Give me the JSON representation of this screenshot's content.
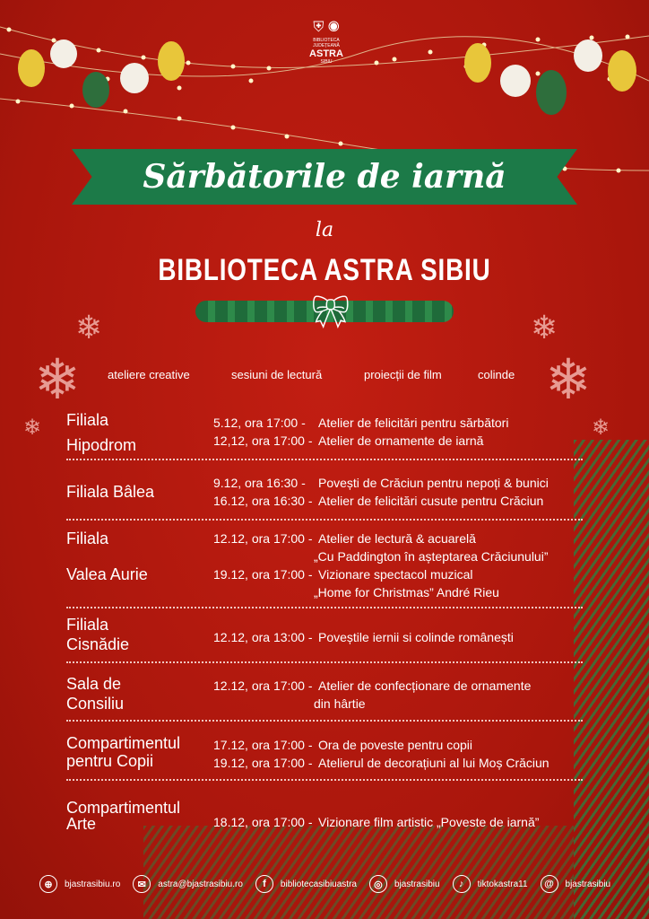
{
  "logo": {
    "line1": "Consiliul Județean Sibiu",
    "line2": "BIBLIOTECA JUDEȚEANĂ",
    "name": "ASTRA",
    "city": "SIBIU"
  },
  "title": "Sărbătorile de iarnă",
  "connector": "la",
  "subtitle": "BIBLIOTECA ASTRA SIBIU",
  "categories": [
    "ateliere creative",
    "sesiuni de lectură",
    "proiecții de film",
    "colinde"
  ],
  "schedule": [
    {
      "place": [
        "Filiala",
        "Hipodrom"
      ],
      "events": [
        {
          "when": "5.12, ora 17:00 -",
          "what": [
            "Atelier de felicitări pentru sărbători"
          ]
        },
        {
          "when": "12,12, ora 17:00 -",
          "what": [
            "Atelier de ornamente de iarnă"
          ]
        }
      ]
    },
    {
      "place": [
        "Filiala Bâlea"
      ],
      "events": [
        {
          "when": "9.12, ora 16:30 -",
          "what": [
            "Povești de Crăciun pentru nepoți & bunici"
          ]
        },
        {
          "when": "16.12, ora 16:30 -",
          "what": [
            "Atelier de felicitări cusute pentru Crăciun"
          ]
        }
      ]
    },
    {
      "place": [
        "Filiala",
        "Valea Aurie"
      ],
      "events": [
        {
          "when": "12.12, ora 17:00 -",
          "what": [
            "Atelier de lectură & acuarelă",
            "„Cu Paddington în așteptarea Crăciunului”"
          ]
        },
        {
          "when": "19.12, ora 17:00 -",
          "what": [
            "Vizionare spectacol muzical",
            "„Home for Christmas” André Rieu"
          ]
        }
      ]
    },
    {
      "place": [
        "Filiala",
        "Cisnădie"
      ],
      "events": [
        {
          "when": "12.12, ora 13:00 -",
          "what": [
            "Poveștile iernii si colinde românești"
          ]
        }
      ]
    },
    {
      "place": [
        "Sala de",
        "Consiliu"
      ],
      "events": [
        {
          "when": "12.12, ora 17:00 -",
          "what": [
            "Atelier de confecționare de ornamente",
            "din hârtie"
          ]
        }
      ]
    },
    {
      "place": [
        "Compartimentul",
        "pentru Copii"
      ],
      "events": [
        {
          "when": "17.12, ora 17:00 -",
          "what": [
            "Ora de poveste pentru copii"
          ]
        },
        {
          "when": "19.12, ora 17:00 -",
          "what": [
            "Atelierul de decorațiuni al lui Moș Crăciun"
          ]
        }
      ]
    },
    {
      "place": [
        "Compartimentul",
        "Arte"
      ],
      "events": [
        {
          "when": "18.12, ora 17:00 -",
          "what": [
            "Vizionare film artistic „Poveste de iarnă”"
          ]
        }
      ]
    }
  ],
  "footer": [
    {
      "icon": "globe-icon",
      "glyph": "⊕",
      "label": "bjastrasibiu.ro"
    },
    {
      "icon": "mail-icon",
      "glyph": "✉",
      "label": "astra@bjastrasibiu.ro"
    },
    {
      "icon": "facebook-icon",
      "glyph": "f",
      "label": "bibliotecasibiuastra"
    },
    {
      "icon": "instagram-icon",
      "glyph": "◎",
      "label": "bjastrasibiu"
    },
    {
      "icon": "tiktok-icon",
      "glyph": "♪",
      "label": "tiktokastra11"
    },
    {
      "icon": "threads-icon",
      "glyph": "@",
      "label": "bjastrasibiu"
    }
  ],
  "colors": {
    "background": "#b3180e",
    "banner": "#1c7a48",
    "ornament_gold": "#e8c63a",
    "ornament_green": "#2e6e3c"
  }
}
